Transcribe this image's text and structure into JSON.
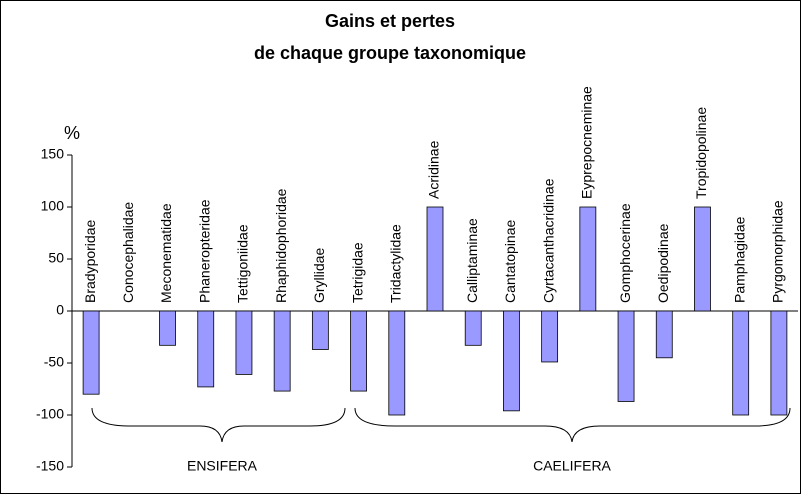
{
  "chart_data": {
    "type": "bar",
    "title": [
      "Gains et pertes",
      "de chaque groupe taxonomique"
    ],
    "y_label": "%",
    "categories": [
      "Bradyporidae",
      "Conocephalidae",
      "Meconematidae",
      "Phaneropteridae",
      "Tettigoniidae",
      "Rhaphidophoridae",
      "Gryllidae",
      "Tetrigidae",
      "Tridactylidae",
      "Acridinae",
      "Calliptaminae",
      "Cantatopinae",
      "Cyrtacanthacridinae",
      "Eyprepocneminae",
      "Gomphocerinae",
      "Oedipodinae",
      "Tropidopolinae",
      "Pamphagidae",
      "Pyrgomorphidae"
    ],
    "values": [
      -80,
      0,
      -33,
      -73,
      -61,
      -77,
      -37,
      -77,
      -100,
      100,
      -33,
      -96,
      -49,
      100,
      -87,
      -45,
      100,
      -100,
      -100
    ],
    "color": "#9999ff",
    "ylim": [
      -150,
      150
    ],
    "yticks": [
      -150,
      -100,
      -50,
      0,
      50,
      100,
      150
    ],
    "group_labels": [
      "ENSIFERA",
      "CAELIFERA"
    ]
  }
}
